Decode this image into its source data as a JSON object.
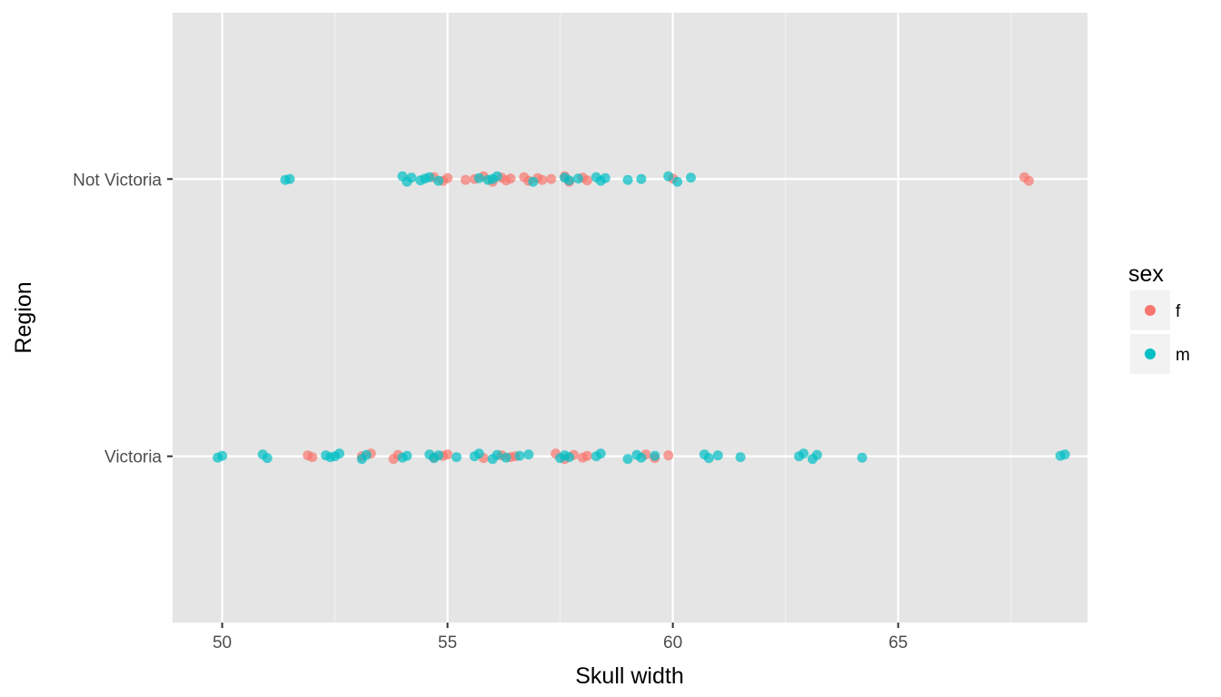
{
  "chart_data": {
    "type": "scatter",
    "title": "",
    "xlabel": "Skull width",
    "ylabel": "Region",
    "xlim": [
      48.9,
      69.2
    ],
    "x_ticks": [
      50,
      55,
      60,
      65
    ],
    "x_tick_labels": [
      "50",
      "55",
      "60",
      "65"
    ],
    "categories": [
      "Victoria",
      "Not Victoria"
    ],
    "grid": true,
    "legend": {
      "title": "sex",
      "position": "right",
      "entries": [
        {
          "label": "f",
          "color": "#F8766D"
        },
        {
          "label": "m",
          "color": "#00BFC4"
        }
      ]
    },
    "series": [
      {
        "name": "f",
        "color": "#F8766D",
        "points": [
          {
            "region": "Not Victoria",
            "x": 54.7
          },
          {
            "region": "Not Victoria",
            "x": 54.9
          },
          {
            "region": "Not Victoria",
            "x": 55.0
          },
          {
            "region": "Not Victoria",
            "x": 55.4
          },
          {
            "region": "Not Victoria",
            "x": 55.6
          },
          {
            "region": "Not Victoria",
            "x": 55.8
          },
          {
            "region": "Not Victoria",
            "x": 56.0
          },
          {
            "region": "Not Victoria",
            "x": 56.2
          },
          {
            "region": "Not Victoria",
            "x": 56.3
          },
          {
            "region": "Not Victoria",
            "x": 56.4
          },
          {
            "region": "Not Victoria",
            "x": 56.7
          },
          {
            "region": "Not Victoria",
            "x": 56.8
          },
          {
            "region": "Not Victoria",
            "x": 57.0
          },
          {
            "region": "Not Victoria",
            "x": 57.1
          },
          {
            "region": "Not Victoria",
            "x": 57.3
          },
          {
            "region": "Not Victoria",
            "x": 57.6
          },
          {
            "region": "Not Victoria",
            "x": 57.7
          },
          {
            "region": "Not Victoria",
            "x": 58.0
          },
          {
            "region": "Not Victoria",
            "x": 58.1
          },
          {
            "region": "Not Victoria",
            "x": 60.0
          },
          {
            "region": "Not Victoria",
            "x": 67.8
          },
          {
            "region": "Not Victoria",
            "x": 67.9
          },
          {
            "region": "Victoria",
            "x": 51.9
          },
          {
            "region": "Victoria",
            "x": 52.0
          },
          {
            "region": "Victoria",
            "x": 53.1
          },
          {
            "region": "Victoria",
            "x": 53.3
          },
          {
            "region": "Victoria",
            "x": 53.8
          },
          {
            "region": "Victoria",
            "x": 53.9
          },
          {
            "region": "Victoria",
            "x": 54.7
          },
          {
            "region": "Victoria",
            "x": 54.9
          },
          {
            "region": "Victoria",
            "x": 55.0
          },
          {
            "region": "Victoria",
            "x": 55.8
          },
          {
            "region": "Victoria",
            "x": 56.2
          },
          {
            "region": "Victoria",
            "x": 56.4
          },
          {
            "region": "Victoria",
            "x": 56.5
          },
          {
            "region": "Victoria",
            "x": 57.4
          },
          {
            "region": "Victoria",
            "x": 57.6
          },
          {
            "region": "Victoria",
            "x": 57.8
          },
          {
            "region": "Victoria",
            "x": 58.0
          },
          {
            "region": "Victoria",
            "x": 58.1
          },
          {
            "region": "Victoria",
            "x": 59.4
          },
          {
            "region": "Victoria",
            "x": 59.6
          },
          {
            "region": "Victoria",
            "x": 59.9
          }
        ]
      },
      {
        "name": "m",
        "color": "#00BFC4",
        "points": [
          {
            "region": "Not Victoria",
            "x": 51.4
          },
          {
            "region": "Not Victoria",
            "x": 51.5
          },
          {
            "region": "Not Victoria",
            "x": 54.0
          },
          {
            "region": "Not Victoria",
            "x": 54.1
          },
          {
            "region": "Not Victoria",
            "x": 54.2
          },
          {
            "region": "Not Victoria",
            "x": 54.4
          },
          {
            "region": "Not Victoria",
            "x": 54.5
          },
          {
            "region": "Not Victoria",
            "x": 54.6
          },
          {
            "region": "Not Victoria",
            "x": 54.8
          },
          {
            "region": "Not Victoria",
            "x": 55.7
          },
          {
            "region": "Not Victoria",
            "x": 55.9
          },
          {
            "region": "Not Victoria",
            "x": 56.0
          },
          {
            "region": "Not Victoria",
            "x": 56.1
          },
          {
            "region": "Not Victoria",
            "x": 56.9
          },
          {
            "region": "Not Victoria",
            "x": 57.6
          },
          {
            "region": "Not Victoria",
            "x": 57.7
          },
          {
            "region": "Not Victoria",
            "x": 57.9
          },
          {
            "region": "Not Victoria",
            "x": 58.3
          },
          {
            "region": "Not Victoria",
            "x": 58.4
          },
          {
            "region": "Not Victoria",
            "x": 58.5
          },
          {
            "region": "Not Victoria",
            "x": 59.0
          },
          {
            "region": "Not Victoria",
            "x": 59.3
          },
          {
            "region": "Not Victoria",
            "x": 59.9
          },
          {
            "region": "Not Victoria",
            "x": 60.1
          },
          {
            "region": "Not Victoria",
            "x": 60.4
          },
          {
            "region": "Victoria",
            "x": 49.9
          },
          {
            "region": "Victoria",
            "x": 50.0
          },
          {
            "region": "Victoria",
            "x": 50.9
          },
          {
            "region": "Victoria",
            "x": 51.0
          },
          {
            "region": "Victoria",
            "x": 52.3
          },
          {
            "region": "Victoria",
            "x": 52.4
          },
          {
            "region": "Victoria",
            "x": 52.5
          },
          {
            "region": "Victoria",
            "x": 52.6
          },
          {
            "region": "Victoria",
            "x": 53.1
          },
          {
            "region": "Victoria",
            "x": 53.2
          },
          {
            "region": "Victoria",
            "x": 54.0
          },
          {
            "region": "Victoria",
            "x": 54.1
          },
          {
            "region": "Victoria",
            "x": 54.6
          },
          {
            "region": "Victoria",
            "x": 54.7
          },
          {
            "region": "Victoria",
            "x": 54.8
          },
          {
            "region": "Victoria",
            "x": 55.2
          },
          {
            "region": "Victoria",
            "x": 55.6
          },
          {
            "region": "Victoria",
            "x": 55.7
          },
          {
            "region": "Victoria",
            "x": 56.0
          },
          {
            "region": "Victoria",
            "x": 56.1
          },
          {
            "region": "Victoria",
            "x": 56.3
          },
          {
            "region": "Victoria",
            "x": 56.6
          },
          {
            "region": "Victoria",
            "x": 56.8
          },
          {
            "region": "Victoria",
            "x": 57.5
          },
          {
            "region": "Victoria",
            "x": 57.6
          },
          {
            "region": "Victoria",
            "x": 57.7
          },
          {
            "region": "Victoria",
            "x": 58.3
          },
          {
            "region": "Victoria",
            "x": 58.4
          },
          {
            "region": "Victoria",
            "x": 59.0
          },
          {
            "region": "Victoria",
            "x": 59.2
          },
          {
            "region": "Victoria",
            "x": 59.3
          },
          {
            "region": "Victoria",
            "x": 59.6
          },
          {
            "region": "Victoria",
            "x": 60.7
          },
          {
            "region": "Victoria",
            "x": 60.8
          },
          {
            "region": "Victoria",
            "x": 61.0
          },
          {
            "region": "Victoria",
            "x": 61.5
          },
          {
            "region": "Victoria",
            "x": 62.8
          },
          {
            "region": "Victoria",
            "x": 62.9
          },
          {
            "region": "Victoria",
            "x": 63.1
          },
          {
            "region": "Victoria",
            "x": 63.2
          },
          {
            "region": "Victoria",
            "x": 64.2
          },
          {
            "region": "Victoria",
            "x": 68.6
          },
          {
            "region": "Victoria",
            "x": 68.7
          }
        ]
      }
    ]
  }
}
